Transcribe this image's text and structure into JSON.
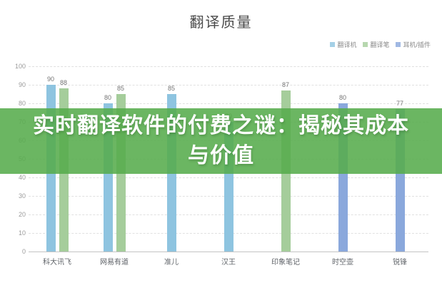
{
  "chart": {
    "title": "翻译质量"
  },
  "banner": {
    "lines": [
      "实时翻译软件的付费之谜：揭秘其成本",
      "与价值"
    ],
    "bg_color": "#56ac4c",
    "text_color": "#ffffff"
  },
  "chart_data": {
    "type": "bar",
    "title": "翻译质量",
    "xlabel": "",
    "ylabel": "",
    "ylim": [
      0,
      100
    ],
    "grid": true,
    "legend_position": "top-right",
    "y_ticks": [
      100,
      90,
      80,
      70,
      60,
      50,
      40,
      30,
      20,
      10,
      0
    ],
    "series_legend": [
      {
        "name": "翻译机",
        "color": "#8ec4e0"
      },
      {
        "name": "翻译笔",
        "color": "#a5cd9b"
      },
      {
        "name": "耳机/插件",
        "color": "#8aa8dc"
      }
    ],
    "categories": [
      "科大讯飞",
      "网易有道",
      "准儿",
      "汉王",
      "印象笔记",
      "时空壶",
      "锐锋"
    ],
    "bars_by_category": [
      [
        {
          "series": "翻译机",
          "value": 90
        },
        {
          "series": "翻译笔",
          "value": 88
        }
      ],
      [
        {
          "series": "翻译机",
          "value": 80
        },
        {
          "series": "翻译笔",
          "value": 85
        }
      ],
      [
        {
          "series": "翻译机",
          "value": 85
        }
      ],
      [
        {
          "series": "翻译机",
          "value": 70
        }
      ],
      [
        {
          "series": "翻译笔",
          "value": 87
        }
      ],
      [
        {
          "series": "耳机/插件",
          "value": 80
        }
      ],
      [
        {
          "series": "耳机/插件",
          "value": 77
        }
      ]
    ]
  }
}
